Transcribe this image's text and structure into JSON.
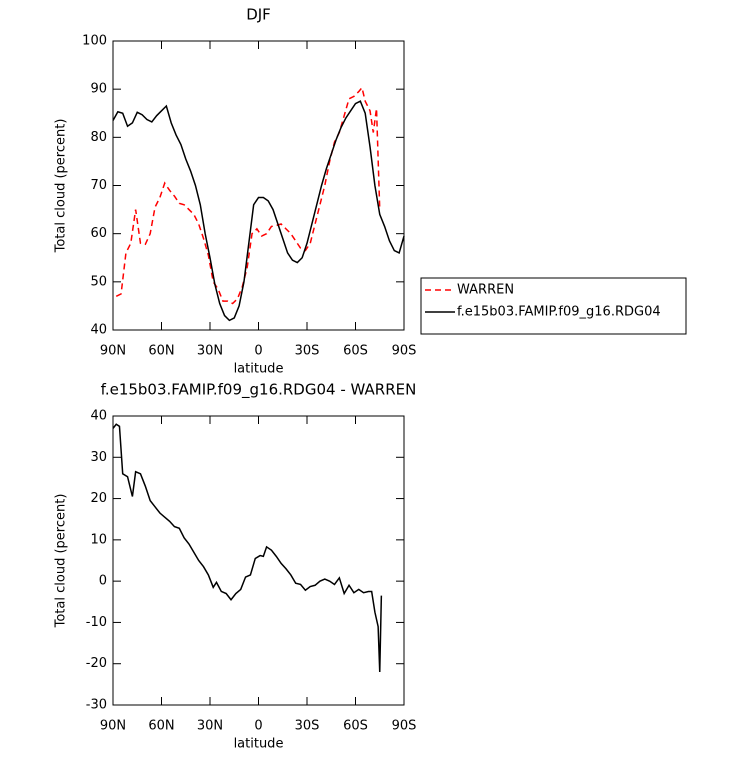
{
  "chart_data": [
    {
      "type": "line",
      "title": "DJF",
      "x_label": "latitude",
      "y_label": "Total cloud (percent)",
      "xlim": [
        90,
        -90
      ],
      "xticks": [
        {
          "value": 90,
          "label": "90N"
        },
        {
          "value": 60,
          "label": "60N"
        },
        {
          "value": 30,
          "label": "30N"
        },
        0,
        {
          "value": -30,
          "label": "30S"
        },
        {
          "value": -60,
          "label": "60S"
        },
        {
          "value": -90,
          "label": "90S"
        }
      ],
      "ylim": [
        40,
        100
      ],
      "yticks": [
        40,
        50,
        60,
        70,
        80,
        90,
        100
      ],
      "legend": "right",
      "series": [
        {
          "name": "WARREN",
          "color": "#ff0000",
          "dash": "dashed",
          "x": [
            88,
            85,
            82,
            79,
            76,
            73,
            70,
            67,
            64,
            61,
            58,
            55,
            52,
            49,
            46,
            43,
            40,
            37,
            34,
            31,
            28,
            25,
            22,
            19,
            16,
            13,
            10,
            7,
            4,
            1,
            -2,
            -5,
            -8,
            -11,
            -14,
            -17,
            -20,
            -23,
            -26,
            -29,
            -32,
            -35,
            -38,
            -41,
            -44,
            -47,
            -50,
            -53,
            -56,
            -59,
            -62,
            -64,
            -66,
            -69,
            -71,
            -73,
            -75
          ],
          "values": [
            47,
            47.5,
            56,
            58,
            65,
            58,
            57.8,
            60,
            65.5,
            67.5,
            70.5,
            69,
            67.8,
            66.3,
            66,
            65,
            64,
            62,
            59,
            55.5,
            50,
            48.5,
            46,
            46,
            45.5,
            46.5,
            49,
            53,
            60,
            61,
            59.5,
            60,
            61.5,
            61.7,
            62,
            61,
            60,
            58.5,
            57,
            56.5,
            58,
            62,
            66,
            70,
            75,
            79,
            81,
            84.5,
            88,
            88.5,
            89.5,
            90.3,
            87.5,
            85.5,
            81,
            86,
            65
          ]
        },
        {
          "name": "f.e15b03.FAMIP.f09_g16.RDG04",
          "color": "#000000",
          "dash": "solid",
          "x": [
            90,
            87,
            84,
            81,
            78,
            75,
            72,
            69,
            66,
            63,
            60,
            57,
            54,
            51,
            48,
            45,
            42,
            39,
            36,
            33,
            30,
            27,
            24,
            21,
            18,
            15,
            12,
            9,
            6,
            3,
            0,
            -3,
            -6,
            -9,
            -12,
            -15,
            -18,
            -21,
            -24,
            -27,
            -30,
            -33,
            -36,
            -39,
            -42,
            -45,
            -48,
            -51,
            -54,
            -57,
            -60,
            -63,
            -66,
            -69,
            -72,
            -75,
            -78,
            -81,
            -84,
            -87,
            -90
          ],
          "values": [
            83.5,
            85.3,
            85,
            82.3,
            83,
            85.2,
            84.7,
            83.7,
            83.2,
            84.5,
            85.5,
            86.5,
            83,
            80.5,
            78.5,
            75.5,
            73,
            70,
            66,
            60,
            55,
            49.5,
            45.5,
            43,
            42,
            42.5,
            45,
            50,
            58,
            66,
            67.5,
            67.5,
            66.8,
            65,
            62,
            59,
            56,
            54.5,
            54,
            55,
            58,
            62,
            66,
            70,
            73.5,
            76.5,
            79.5,
            82,
            84,
            85.5,
            87,
            87.5,
            85,
            78,
            70,
            64,
            61.5,
            58.5,
            56.5,
            56,
            59.5
          ]
        }
      ]
    },
    {
      "type": "line",
      "title": "f.e15b03.FAMIP.f09_g16.RDG04 - WARREN",
      "x_label": "latitude",
      "y_label": "Total cloud (percent)",
      "xlim": [
        90,
        -90
      ],
      "xticks": [
        {
          "value": 90,
          "label": "90N"
        },
        {
          "value": 60,
          "label": "60N"
        },
        {
          "value": 30,
          "label": "30N"
        },
        0,
        {
          "value": -30,
          "label": "30S"
        },
        {
          "value": -60,
          "label": "60S"
        },
        {
          "value": -90,
          "label": "90S"
        }
      ],
      "ylim": [
        -30,
        40
      ],
      "yticks": [
        -30,
        -20,
        -10,
        0,
        10,
        20,
        30,
        40
      ],
      "color": "#000000",
      "x": [
        90,
        88,
        86,
        84,
        81,
        78,
        76,
        73,
        70,
        67,
        64,
        61,
        58,
        55,
        52,
        49,
        46,
        43,
        40,
        37,
        34,
        31,
        28,
        26,
        23,
        20,
        17,
        14,
        11,
        8,
        5,
        2,
        -1,
        -3,
        -5,
        -8,
        -11,
        -14,
        -17,
        -20,
        -23,
        -26,
        -29,
        -32,
        -35,
        -38,
        -41,
        -44,
        -47,
        -50,
        -53,
        -56,
        -59,
        -62,
        -65,
        -68,
        -70,
        -72,
        -74,
        -75,
        -76
      ],
      "values": [
        37,
        38,
        37.5,
        26,
        25.3,
        20.5,
        26.5,
        26,
        23,
        19.5,
        18,
        16.5,
        15.5,
        14.5,
        13.2,
        12.8,
        10.5,
        9,
        7,
        5,
        3.5,
        1.5,
        -1.5,
        -0.3,
        -2.5,
        -3,
        -4.5,
        -3,
        -2,
        1,
        1.5,
        5.5,
        6.2,
        6,
        8.3,
        7.5,
        6,
        4.3,
        3,
        1.5,
        -0.5,
        -0.8,
        -2.2,
        -1.3,
        -1,
        0,
        0.5,
        0,
        -0.8,
        0.8,
        -3,
        -1,
        -2.8,
        -2,
        -2.8,
        -2.5,
        -2.5,
        -7.5,
        -11,
        -22,
        -3.5
      ]
    }
  ]
}
